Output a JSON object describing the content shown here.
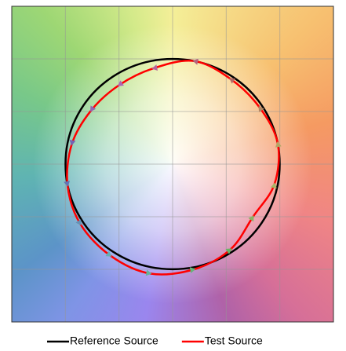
{
  "chart_data": {
    "type": "vector-graphic",
    "xlim": [
      -1.5,
      1.5
    ],
    "ylim": [
      -1.5,
      1.5
    ],
    "xticks": [
      -1.5,
      -1,
      -0.5,
      0,
      0.5,
      1,
      1.5
    ],
    "yticks": [
      -1.5,
      -1,
      -0.5,
      0,
      0.5,
      1,
      1.5
    ],
    "grid": true,
    "legend": "bottom",
    "series": [
      {
        "name": "Reference Source",
        "color": "#000000",
        "x": [
          0.98,
          0.83,
          0.56,
          0.2,
          -0.2,
          -0.56,
          -0.83,
          -0.98,
          -0.98,
          -0.83,
          -0.56,
          -0.2,
          0.2,
          0.56,
          0.83,
          0.98
        ],
        "values": [
          0.2,
          0.56,
          0.83,
          0.98,
          0.98,
          0.83,
          0.56,
          0.2,
          -0.2,
          -0.56,
          -0.83,
          -0.98,
          -0.98,
          -0.83,
          -0.56,
          -0.2
        ]
      },
      {
        "name": "Test Source",
        "color": "#ff0000",
        "x": [
          0.98,
          0.81,
          0.54,
          0.2,
          -0.18,
          -0.5,
          -0.76,
          -0.94,
          -0.98,
          -0.86,
          -0.58,
          -0.21,
          0.2,
          0.54,
          0.75,
          0.95
        ],
        "values": [
          0.2,
          0.54,
          0.81,
          0.98,
          0.91,
          0.75,
          0.51,
          0.19,
          -0.2,
          -0.57,
          -0.87,
          -1.04,
          -1.0,
          -0.81,
          -0.5,
          -0.19
        ]
      }
    ]
  }
}
